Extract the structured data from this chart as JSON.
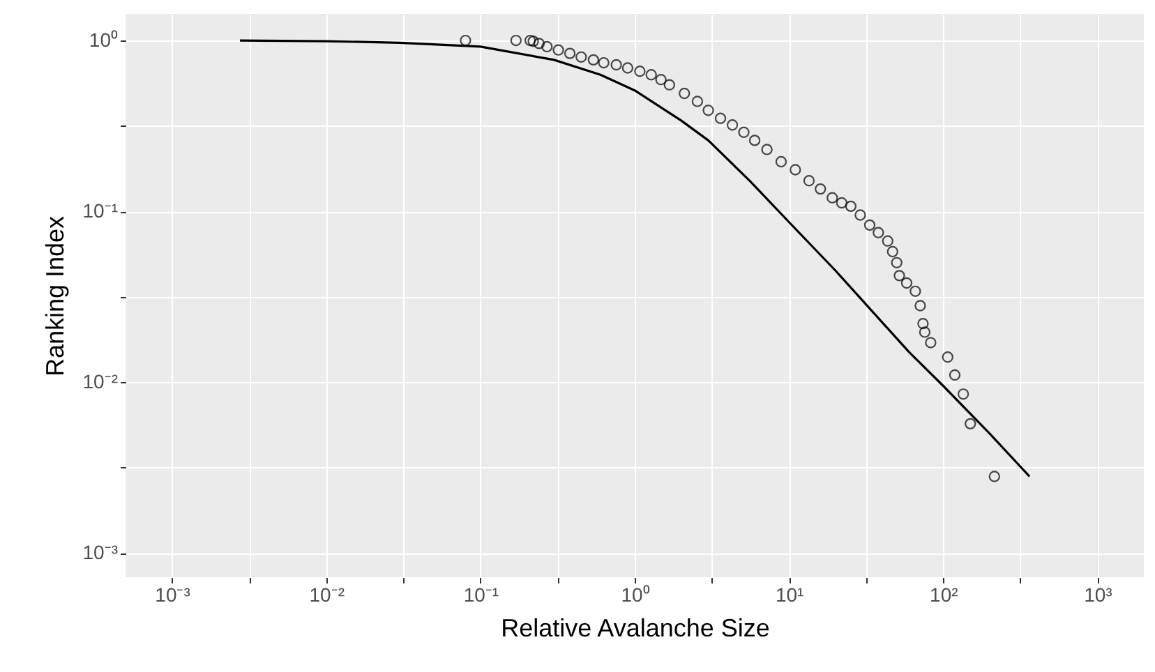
{
  "chart_data": {
    "type": "scatter",
    "xlabel": "Relative Avalanche Size",
    "ylabel": "Ranking Index",
    "log": "xy",
    "grid": true,
    "xlim": [
      0.0005,
      2000
    ],
    "ylim": [
      0.00072,
      1.43
    ],
    "xticks": [
      {
        "value": 0.001,
        "label": "10⁻³"
      },
      {
        "value": 0.0031623,
        "label": null
      },
      {
        "value": 0.01,
        "label": "10⁻²"
      },
      {
        "value": 0.031623,
        "label": null
      },
      {
        "value": 0.1,
        "label": "10⁻¹"
      },
      {
        "value": 0.31623,
        "label": null
      },
      {
        "value": 1,
        "label": "10⁰"
      },
      {
        "value": 3.1623,
        "label": null
      },
      {
        "value": 10,
        "label": "10¹"
      },
      {
        "value": 31.623,
        "label": null
      },
      {
        "value": 100,
        "label": "10²"
      },
      {
        "value": 316.23,
        "label": null
      },
      {
        "value": 1000,
        "label": "10³"
      }
    ],
    "yticks": [
      {
        "value": 0.001,
        "label": "10⁻³"
      },
      {
        "value": 0.0031623,
        "label": null
      },
      {
        "value": 0.01,
        "label": "10⁻²"
      },
      {
        "value": 0.031623,
        "label": null
      },
      {
        "value": 0.1,
        "label": "10⁻¹"
      },
      {
        "value": 0.31623,
        "label": null
      },
      {
        "value": 1,
        "label": "10⁰"
      }
    ],
    "series": [
      {
        "type": "scatter",
        "marker": "circle",
        "color": "#000000",
        "x": [
          0.08,
          0.17,
          0.21,
          0.22,
          0.24,
          0.27,
          0.32,
          0.38,
          0.45,
          0.54,
          0.63,
          0.76,
          0.9,
          1.08,
          1.28,
          1.48,
          1.68,
          2.1,
          2.55,
          3.0,
          3.6,
          4.3,
          5.1,
          6.0,
          7.2,
          8.9,
          11,
          13.5,
          16,
          19.1,
          22,
          25.2,
          29,
          33.4,
          38,
          43.7,
          47,
          50,
          52,
          58,
          66,
          71,
          74,
          76,
          83,
          107,
          119,
          135,
          150,
          215
        ],
        "values": [
          1.0,
          1.0,
          1.0,
          0.99,
          0.96,
          0.92,
          0.88,
          0.84,
          0.8,
          0.77,
          0.74,
          0.72,
          0.69,
          0.66,
          0.63,
          0.59,
          0.55,
          0.49,
          0.44,
          0.39,
          0.35,
          0.32,
          0.29,
          0.26,
          0.23,
          0.195,
          0.175,
          0.151,
          0.135,
          0.12,
          0.112,
          0.107,
          0.095,
          0.083,
          0.075,
          0.067,
          0.058,
          0.05,
          0.042,
          0.038,
          0.034,
          0.028,
          0.022,
          0.0196,
          0.017,
          0.014,
          0.011,
          0.0085,
          0.0057,
          0.0028
        ]
      },
      {
        "type": "line",
        "color": "#000000",
        "x": [
          0.00276,
          0.01,
          0.03,
          0.1,
          0.3,
          0.6,
          1,
          2,
          3,
          5.6,
          10,
          20,
          30,
          60,
          100,
          200,
          363
        ],
        "values": [
          1.0,
          0.99,
          0.97,
          0.92,
          0.77,
          0.63,
          0.51,
          0.34,
          0.26,
          0.15,
          0.0865,
          0.045,
          0.03,
          0.015,
          0.0095,
          0.005,
          0.0028
        ]
      }
    ]
  }
}
